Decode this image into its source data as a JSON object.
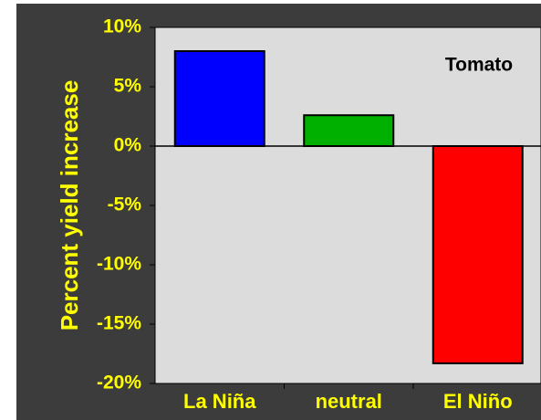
{
  "chart_data": {
    "type": "bar",
    "y_label": "Percent yield increase",
    "annotation": "Tomato",
    "categories": [
      "La Niña",
      "neutral",
      "El Niño"
    ],
    "values": [
      8.0,
      2.6,
      -18.3
    ],
    "colors": [
      "#0000ff",
      "#00b000",
      "#ff0000"
    ],
    "ylim": [
      -20,
      10
    ],
    "yticks": [
      {
        "value": -20,
        "label": "-20%"
      },
      {
        "value": -15,
        "label": "-15%"
      },
      {
        "value": -10,
        "label": "-10%"
      },
      {
        "value": -5,
        "label": "-5%"
      },
      {
        "value": 0,
        "label": "0%"
      },
      {
        "value": 5,
        "label": "5%"
      },
      {
        "value": 10,
        "label": "10%"
      }
    ]
  }
}
